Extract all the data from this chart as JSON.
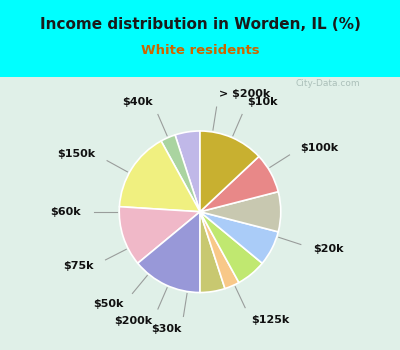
{
  "title": "Income distribution in Worden, IL (%)",
  "subtitle": "White residents",
  "title_color": "#1a1a1a",
  "subtitle_color": "#cc6600",
  "background_color": "#00ffff",
  "chart_bg_top_left": "#d0ede0",
  "chart_bg_bottom_right": "#e8f8f0",
  "labels": [
    "> $200k",
    "$10k",
    "$100k",
    "$20k",
    "$125k",
    "$30k",
    "$200k",
    "$50k",
    "$75k",
    "$60k",
    "$150k",
    "$40k"
  ],
  "values": [
    5,
    3,
    16,
    12,
    14,
    5,
    3,
    6,
    7,
    8,
    8,
    13
  ],
  "colors": [
    "#c0b8e8",
    "#aad4a0",
    "#f0f080",
    "#f0b8c8",
    "#9898d8",
    "#c8c870",
    "#f8c888",
    "#c0e870",
    "#aaccf8",
    "#c8c8b0",
    "#e88888",
    "#c8b030"
  ],
  "wedge_edge_color": "#ffffff",
  "label_fontsize": 8,
  "startangle": 90
}
